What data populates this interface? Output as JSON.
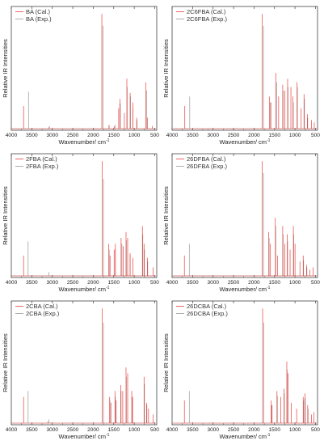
{
  "colors": {
    "calculated": "#e8413c",
    "experimental": "#9a9a9a",
    "axis": "#444444"
  },
  "chart_data": [
    {
      "type": "line",
      "xlabel": "Wavenumber/ cm",
      "xlabel_superscript": "-1",
      "ylabel": "Relative IR Intensities",
      "x_ticks": [
        4000,
        3500,
        3000,
        2500,
        2000,
        1500,
        1000,
        500
      ],
      "xlim": [
        4000,
        450
      ],
      "ylim": [
        0,
        1.05
      ],
      "x_reversed": true,
      "legend_position": "top-left",
      "series": [
        {
          "name": "BA (Cal.)",
          "style": "stick",
          "peaks": [
            [
              3700,
              0.22
            ],
            [
              3110,
              0.03
            ],
            [
              3080,
              0.04
            ],
            [
              1790,
              1.0
            ],
            [
              1615,
              0.06
            ],
            [
              1490,
              0.05
            ],
            [
              1380,
              0.2
            ],
            [
              1350,
              0.28
            ],
            [
              1240,
              0.16
            ],
            [
              1180,
              0.45
            ],
            [
              1100,
              0.33
            ],
            [
              1030,
              0.25
            ],
            [
              940,
              0.12
            ],
            [
              720,
              0.42
            ],
            [
              680,
              0.12
            ],
            [
              560,
              0.05
            ]
          ]
        },
        {
          "name": "BA (Exp.)",
          "style": "stick",
          "peaks": [
            [
              3580,
              0.34
            ],
            [
              3070,
              0.05
            ],
            [
              1760,
              0.9
            ],
            [
              1610,
              0.05
            ],
            [
              1460,
              0.06
            ],
            [
              1340,
              0.24
            ],
            [
              1170,
              0.38
            ],
            [
              1090,
              0.3
            ],
            [
              1030,
              0.2
            ],
            [
              930,
              0.1
            ],
            [
              700,
              0.35
            ]
          ]
        }
      ]
    },
    {
      "type": "line",
      "xlabel": "Wavenumber/ cm",
      "xlabel_superscript": "-1",
      "ylabel": "Relative IR Intensities",
      "x_ticks": [
        4000,
        3500,
        3000,
        2500,
        2000,
        1500,
        1000,
        500
      ],
      "xlim": [
        4000,
        450
      ],
      "ylim": [
        0,
        1.05
      ],
      "x_reversed": true,
      "legend_position": "top-left",
      "series": [
        {
          "name": "2C6FBA (Cal.)",
          "style": "stick",
          "peaks": [
            [
              3690,
              0.22
            ],
            [
              3120,
              0.02
            ],
            [
              1800,
              1.0
            ],
            [
              1620,
              0.3
            ],
            [
              1590,
              0.25
            ],
            [
              1470,
              0.5
            ],
            [
              1400,
              0.3
            ],
            [
              1300,
              0.4
            ],
            [
              1250,
              0.35
            ],
            [
              1180,
              0.45
            ],
            [
              1100,
              0.38
            ],
            [
              1050,
              0.3
            ],
            [
              950,
              0.42
            ],
            [
              850,
              0.2
            ],
            [
              780,
              0.32
            ],
            [
              700,
              0.15
            ],
            [
              600,
              0.1
            ],
            [
              530,
              0.08
            ]
          ]
        },
        {
          "name": "2C6FBA (Exp.)",
          "style": "stick",
          "peaks": [
            [
              3570,
              0.3
            ],
            [
              3080,
              0.03
            ],
            [
              1770,
              0.9
            ],
            [
              1600,
              0.25
            ],
            [
              1450,
              0.42
            ],
            [
              1290,
              0.35
            ],
            [
              1170,
              0.38
            ],
            [
              1040,
              0.25
            ],
            [
              940,
              0.38
            ],
            [
              770,
              0.28
            ],
            [
              690,
              0.12
            ]
          ]
        }
      ]
    },
    {
      "type": "line",
      "xlabel": "Wavenumber/ cm",
      "xlabel_superscript": "-1",
      "ylabel": "Relative IR Intensities",
      "x_ticks": [
        4000,
        3500,
        3000,
        2500,
        2000,
        1500,
        1000,
        500
      ],
      "xlim": [
        4000,
        450
      ],
      "ylim": [
        0,
        1.05
      ],
      "x_reversed": true,
      "legend_position": "top-left",
      "series": [
        {
          "name": "2FBA (Cal.)",
          "style": "stick",
          "peaks": [
            [
              3700,
              0.2
            ],
            [
              3100,
              0.03
            ],
            [
              1780,
              1.0
            ],
            [
              1620,
              0.3
            ],
            [
              1590,
              0.2
            ],
            [
              1490,
              0.25
            ],
            [
              1460,
              0.3
            ],
            [
              1320,
              0.35
            ],
            [
              1270,
              0.28
            ],
            [
              1200,
              0.4
            ],
            [
              1160,
              0.35
            ],
            [
              1100,
              0.22
            ],
            [
              1030,
              0.18
            ],
            [
              800,
              0.45
            ],
            [
              760,
              0.3
            ],
            [
              680,
              0.18
            ],
            [
              540,
              0.1
            ]
          ]
        },
        {
          "name": "2FBA (Exp.)",
          "style": "stick",
          "peaks": [
            [
              3590,
              0.32
            ],
            [
              3080,
              0.06
            ],
            [
              1750,
              0.85
            ],
            [
              1610,
              0.25
            ],
            [
              1460,
              0.26
            ],
            [
              1300,
              0.3
            ],
            [
              1190,
              0.33
            ],
            [
              1100,
              0.2
            ],
            [
              790,
              0.38
            ],
            [
              750,
              0.25
            ],
            [
              670,
              0.15
            ]
          ]
        }
      ]
    },
    {
      "type": "line",
      "xlabel": "Wavenumber/ cm",
      "xlabel_superscript": "-1",
      "ylabel": "Relative IR Intensities",
      "x_ticks": [
        4000,
        3500,
        3000,
        2500,
        2000,
        1500,
        1000,
        500
      ],
      "xlim": [
        4000,
        450
      ],
      "ylim": [
        0,
        1.05
      ],
      "x_reversed": true,
      "legend_position": "top-left",
      "series": [
        {
          "name": "26DFBA (Cal.)",
          "style": "stick",
          "peaks": [
            [
              3700,
              0.2
            ],
            [
              3110,
              0.03
            ],
            [
              1800,
              1.0
            ],
            [
              1640,
              0.4
            ],
            [
              1600,
              0.3
            ],
            [
              1480,
              0.52
            ],
            [
              1430,
              0.2
            ],
            [
              1300,
              0.45
            ],
            [
              1250,
              0.3
            ],
            [
              1190,
              0.38
            ],
            [
              1120,
              0.25
            ],
            [
              1040,
              0.45
            ],
            [
              1000,
              0.3
            ],
            [
              880,
              0.15
            ],
            [
              800,
              0.2
            ],
            [
              720,
              0.12
            ],
            [
              640,
              0.08
            ],
            [
              560,
              0.1
            ]
          ]
        },
        {
          "name": "26DFBA (Exp.)",
          "style": "stick",
          "peaks": [
            [
              3580,
              0.3
            ],
            [
              3090,
              0.03
            ],
            [
              1770,
              0.9
            ],
            [
              1630,
              0.35
            ],
            [
              1470,
              0.45
            ],
            [
              1290,
              0.38
            ],
            [
              1180,
              0.32
            ],
            [
              1030,
              0.38
            ],
            [
              790,
              0.16
            ],
            [
              710,
              0.1
            ]
          ]
        }
      ]
    },
    {
      "type": "line",
      "xlabel": "Wavenumber/ cm",
      "xlabel_superscript": "-1",
      "ylabel": "Relative IR Intensities",
      "x_ticks": [
        4000,
        3500,
        3000,
        2500,
        2000,
        1500,
        1000,
        500
      ],
      "xlim": [
        4000,
        450
      ],
      "ylim": [
        0,
        1.05
      ],
      "x_reversed": true,
      "legend_position": "top-left",
      "series": [
        {
          "name": "2CBA (Cal.)",
          "style": "stick",
          "peaks": [
            [
              3700,
              0.25
            ],
            [
              3110,
              0.04
            ],
            [
              1780,
              1.0
            ],
            [
              1600,
              0.25
            ],
            [
              1570,
              0.2
            ],
            [
              1470,
              0.3
            ],
            [
              1440,
              0.22
            ],
            [
              1330,
              0.35
            ],
            [
              1280,
              0.3
            ],
            [
              1200,
              0.5
            ],
            [
              1160,
              0.45
            ],
            [
              1060,
              0.3
            ],
            [
              1040,
              0.25
            ],
            [
              760,
              0.42
            ],
            [
              700,
              0.2
            ],
            [
              650,
              0.15
            ],
            [
              540,
              0.1
            ]
          ]
        },
        {
          "name": "2CBA (Exp.)",
          "style": "stick",
          "peaks": [
            [
              3590,
              0.3
            ],
            [
              3080,
              0.06
            ],
            [
              1750,
              0.88
            ],
            [
              1590,
              0.22
            ],
            [
              1460,
              0.25
            ],
            [
              1320,
              0.3
            ],
            [
              1190,
              0.42
            ],
            [
              1050,
              0.25
            ],
            [
              750,
              0.36
            ],
            [
              690,
              0.18
            ]
          ]
        }
      ]
    },
    {
      "type": "line",
      "xlabel": "Wavenumber/ cm",
      "xlabel_superscript": "-1",
      "ylabel": "Relative IR Intensities",
      "x_ticks": [
        4000,
        3500,
        3000,
        2500,
        2000,
        1500,
        1000,
        500
      ],
      "xlim": [
        4000,
        450
      ],
      "ylim": [
        0,
        1.05
      ],
      "x_reversed": true,
      "legend_position": "top-left",
      "series": [
        {
          "name": "26DCBA (Cal.)",
          "style": "stick",
          "peaks": [
            [
              3700,
              0.22
            ],
            [
              3110,
              0.03
            ],
            [
              1790,
              1.0
            ],
            [
              1580,
              0.22
            ],
            [
              1560,
              0.18
            ],
            [
              1440,
              0.3
            ],
            [
              1350,
              0.25
            ],
            [
              1270,
              0.32
            ],
            [
              1200,
              0.55
            ],
            [
              1170,
              0.45
            ],
            [
              1090,
              0.2
            ],
            [
              960,
              0.15
            ],
            [
              800,
              0.25
            ],
            [
              760,
              0.28
            ],
            [
              690,
              0.18
            ],
            [
              600,
              0.1
            ],
            [
              540,
              0.12
            ]
          ]
        },
        {
          "name": "26DCBA (Exp.)",
          "style": "stick",
          "peaks": [
            [
              3580,
              0.3
            ],
            [
              3080,
              0.03
            ],
            [
              1760,
              0.88
            ],
            [
              1570,
              0.18
            ],
            [
              1430,
              0.26
            ],
            [
              1260,
              0.28
            ],
            [
              1190,
              0.48
            ],
            [
              790,
              0.22
            ],
            [
              750,
              0.24
            ],
            [
              680,
              0.15
            ]
          ]
        }
      ]
    }
  ]
}
